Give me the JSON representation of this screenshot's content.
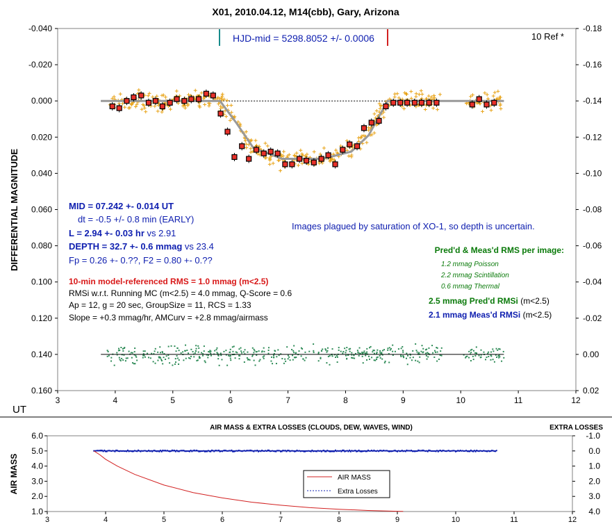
{
  "chart_data": [
    {
      "type": "scatter",
      "title": "X01, 2010.04.12, M14(cbb), Gary, Arizona",
      "ylabel": "DIFFERENTIAL MAGNITUDE",
      "xlabel": "UT",
      "xlim": [
        3,
        12
      ],
      "ylim_left": [
        -0.04,
        0.16
      ],
      "ylim_right": [
        -0.18,
        0.02
      ],
      "y_inverted": true,
      "x_ticks": [
        "3",
        "4",
        "5",
        "6",
        "7",
        "8",
        "9",
        "10",
        "11",
        "12"
      ],
      "y_left_ticks": [
        "-0.040",
        "-0.020",
        "0.000",
        "0.020",
        "0.040",
        "0.060",
        "0.080",
        "0.100",
        "0.120",
        "0.140",
        "0.160"
      ],
      "y_right_ticks": [
        "-0.18",
        "-0.16",
        "-0.14",
        "-0.12",
        "-0.10",
        "-0.08",
        "-0.06",
        "-0.04",
        "-0.02",
        "0.00",
        "0.02"
      ],
      "hjd_label": "HJD-mid = 5298.8052 +/- 0.0006",
      "ref_label": "10 Ref *",
      "note": "Images plagued by saturation of XO-1, so depth is uncertain.",
      "stats": {
        "mid": "MID = 07.242 +- 0.014 UT",
        "dt": "dt = -0.5 +/- 0.8 min (EARLY)",
        "length_bold": "L = 2.94 +- 0.03 hr",
        "length_rest": " vs 2.91",
        "depth_bold": "DEPTH = 32.7 +- 0.6 mmag",
        "depth_rest": " vs 23.4",
        "fp": "Fp = 0.26 +- 0.??, F2 = 0.80 +- 0.??",
        "rms_model": "10-min model-referenced RMS = 1.0 mmag (m<2.5)",
        "rmsi": "RMSi w.r.t. Running MC (m<2.5) = 4.0 mmag, Q-Score = 0.6",
        "ap": "Ap = 12, g = 20 sec, GroupSize = 11, RCS = 1.33",
        "slope": "Slope = +0.3 mmag/hr, AMCurv = +2.8 mmag/airmass"
      },
      "rms_box": {
        "title": "Pred'd & Meas'd RMS per image:",
        "poisson": "1.2 mmag Poisson",
        "scint": "2.2 mmag Scintillation",
        "thermal": "0.6 mmag Thermal",
        "pred_bold": "2.5 mmag Pred'd  RMSi",
        "pred_rest": " (m<2.5)",
        "meas_bold": "2.1 mmag Meas'd RMSi",
        "meas_rest": " (m<2.5)"
      },
      "model": {
        "x": [
          3.75,
          5.82,
          6.1,
          6.4,
          6.9,
          7.6,
          8.1,
          8.4,
          8.73,
          10.75
        ],
        "y": [
          0.0,
          0.0,
          0.012,
          0.026,
          0.032,
          0.032,
          0.028,
          0.019,
          0.0,
          0.0
        ]
      },
      "binned": {
        "x": [
          3.95,
          4.07,
          4.2,
          4.32,
          4.45,
          4.58,
          4.7,
          4.82,
          4.95,
          5.07,
          5.2,
          5.32,
          5.45,
          5.58,
          5.7,
          5.83,
          5.95,
          6.07,
          6.2,
          6.32,
          6.45,
          6.58,
          6.7,
          6.82,
          6.95,
          7.07,
          7.2,
          7.32,
          7.45,
          7.58,
          7.7,
          7.82,
          7.95,
          8.07,
          8.2,
          8.32,
          8.45,
          8.58,
          8.7,
          8.83,
          8.95,
          9.07,
          9.2,
          9.32,
          9.45,
          9.58,
          10.2,
          10.32,
          10.45,
          10.58
        ],
        "y": [
          0.003,
          0.004,
          0.0,
          -0.002,
          -0.003,
          0.001,
          0.0,
          0.003,
          0.001,
          -0.001,
          0.0,
          -0.001,
          -0.001,
          -0.004,
          -0.003,
          0.007,
          0.017,
          0.031,
          0.025,
          0.032,
          0.027,
          0.029,
          0.028,
          0.029,
          0.035,
          0.035,
          0.032,
          0.033,
          0.034,
          0.032,
          0.03,
          0.035,
          0.027,
          0.024,
          0.025,
          0.015,
          0.012,
          0.011,
          0.003,
          0.001,
          0.001,
          0.001,
          0.001,
          0.001,
          0.001,
          0.001,
          0.002,
          -0.001,
          0.002,
          0.001
        ]
      },
      "residual_level": 0.14,
      "residual_seed_note": "",
      "colors": {
        "raw": "#e8a317",
        "binned": "#e8312a",
        "model": "#999999",
        "residual": "#2e8b57",
        "hjd_left": "#178b8b",
        "hjd_right": "#d22020",
        "blue": "#1020b0",
        "red": "#d81818",
        "green": "#0a7a0a"
      }
    },
    {
      "type": "line",
      "title": "AIR MASS & EXTRA LOSSES (CLOUDS, DEW, WAVES, WIND)",
      "ylabel": "AIR MASS",
      "right_label": "EXTRA LOSSES",
      "xlim": [
        3,
        12
      ],
      "ylim_left": [
        1.0,
        6.0
      ],
      "ylim_right": [
        -1.0,
        4.0
      ],
      "x_ticks": [
        "3",
        "4",
        "5",
        "6",
        "7",
        "8",
        "9",
        "10",
        "11",
        "12"
      ],
      "y_left_ticks": [
        "6.0",
        "5.0",
        "4.0",
        "3.0",
        "2.0",
        "1.0"
      ],
      "y_right_ticks": [
        "-1.0",
        "0.0",
        "1.0",
        "2.0",
        "3.0",
        "4.0"
      ],
      "series": [
        {
          "name": "AIR MASS",
          "color": "#d22020",
          "x": [
            3.8,
            3.9,
            4.0,
            4.2,
            4.5,
            5.0,
            5.5,
            6.0,
            6.5,
            7.0,
            7.5,
            8.0,
            8.5,
            9.0,
            9.1
          ],
          "y": [
            5.0,
            4.75,
            4.45,
            4.0,
            3.45,
            2.75,
            2.25,
            1.9,
            1.62,
            1.42,
            1.26,
            1.15,
            1.07,
            1.02,
            1.01
          ]
        },
        {
          "name": "Extra Losses",
          "color": "#1020b0",
          "x": [
            3.8,
            10.7
          ],
          "y": [
            0.0,
            0.0
          ]
        }
      ]
    }
  ]
}
